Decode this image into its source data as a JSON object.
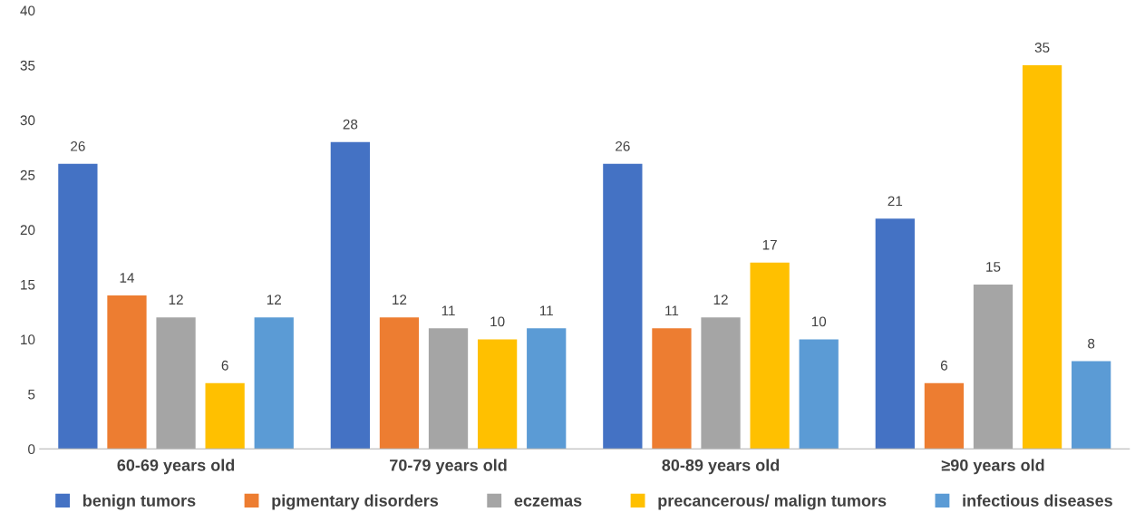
{
  "chart_data": {
    "type": "bar",
    "categories": [
      "60-69 years old",
      "70-79 years old",
      "80-89 years old",
      "≥90 years old"
    ],
    "series": [
      {
        "name": "benign tumors",
        "color": "#4472c4",
        "values": [
          26,
          28,
          26,
          21
        ]
      },
      {
        "name": "pigmentary disorders",
        "color": "#ed7d31",
        "values": [
          14,
          12,
          11,
          6
        ]
      },
      {
        "name": "eczemas",
        "color": "#a5a5a5",
        "values": [
          12,
          11,
          12,
          15
        ]
      },
      {
        "name": "precancerous/ malign tumors",
        "color": "#ffc000",
        "values": [
          6,
          10,
          17,
          35
        ]
      },
      {
        "name": "infectious diseases",
        "color": "#5b9bd5",
        "values": [
          12,
          11,
          10,
          8
        ]
      }
    ],
    "ylim": [
      0,
      40
    ],
    "yticks": [
      0,
      5,
      10,
      15,
      20,
      25,
      30,
      35,
      40
    ],
    "data_labels": true,
    "grid": false,
    "legend": "bottom"
  }
}
